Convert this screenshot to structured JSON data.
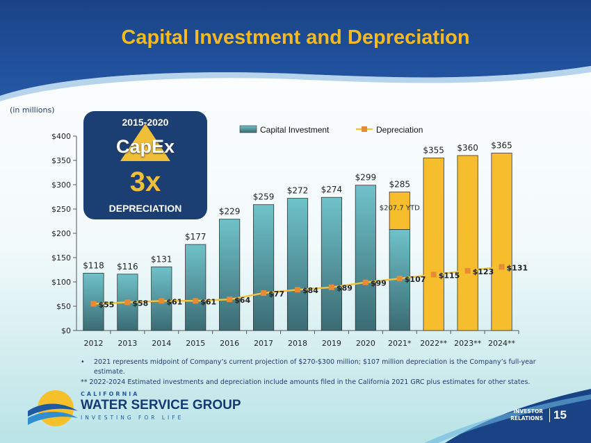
{
  "page_title": "Capital Investment and Depreciation",
  "units_note": "(in millions)",
  "badge": {
    "years": "2015-2020",
    "capex": "CapEx",
    "multiple": "3x",
    "label": "DEPRECIATION"
  },
  "colors": {
    "title": "#f5b922",
    "header": "#1f4b8e",
    "bar_teal": "#6fc2c9",
    "bar_dark": "#3b6b73",
    "bar_yellow": "#f6be2c",
    "dep_line": "#f2c23a",
    "dep_marker": "#e98a34",
    "badge": "#1b3f73",
    "badge_triangle": "#f0bf3a",
    "text_navy": "#1f3a6e"
  },
  "chart_data": {
    "type": "bar",
    "categories": [
      "2012",
      "2013",
      "2014",
      "2015",
      "2016",
      "2017",
      "2018",
      "2019",
      "2020",
      "2021*",
      "2022**",
      "2023**",
      "2024**"
    ],
    "series": [
      {
        "name": "Capital Investment",
        "values": [
          118,
          116,
          131,
          177,
          229,
          259,
          272,
          274,
          299,
          285,
          355,
          360,
          365
        ],
        "labels": [
          "$118",
          "$116",
          "$131",
          "$177",
          "$229",
          "$259",
          "$272",
          "$274",
          "$299",
          "$285",
          "$355",
          "$360",
          "$365"
        ]
      },
      {
        "name": "Depreciation",
        "values": [
          55,
          58,
          61,
          61,
          64,
          77,
          84,
          89,
          99,
          107,
          115,
          123,
          131
        ],
        "labels": [
          "$55",
          "$58",
          "$61",
          "$61",
          "$64",
          "$77",
          "$84",
          "$89",
          "$99",
          "$107",
          "$115",
          "$123",
          "$131"
        ]
      }
    ],
    "ytd": {
      "category": "2021*",
      "value": 207.7,
      "label": "$207.7 YTD"
    },
    "actual_count": 9,
    "ylim": [
      0,
      400
    ],
    "yticks": [
      0,
      50,
      100,
      150,
      200,
      250,
      300,
      350,
      400
    ],
    "ytick_labels": [
      "$0",
      "$50",
      "$100",
      "$150",
      "$200",
      "$250",
      "$300",
      "$350",
      "$400"
    ],
    "legend_position": "top"
  },
  "footnotes": {
    "bullet": "2021 represents midpoint of Company’s current projection of $270-$300 million; $107 million depreciation is the Company’s full-year estimate.",
    "note2": "** 2022-2024 Estimated investments and depreciation include amounts filed in the California 2021 GRC plus estimates for other states."
  },
  "logo": {
    "line1": "CALIFORNIA",
    "line2": "WATER SERVICE GROUP",
    "tagline": "INVESTING FOR LIFE"
  },
  "footer": {
    "ir_line1": "INVESTOR",
    "ir_line2": "RELATIONS",
    "page_number": "15"
  }
}
